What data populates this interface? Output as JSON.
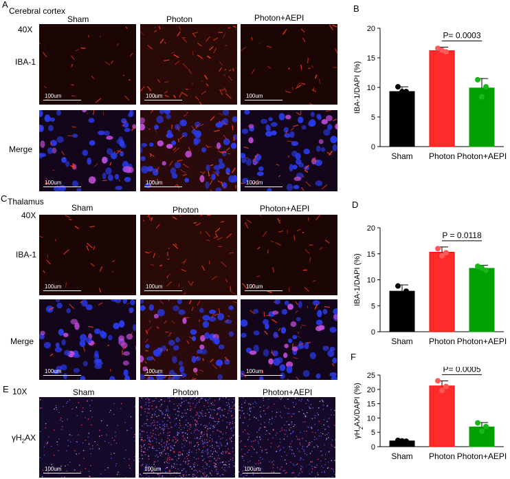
{
  "panels": {
    "A": {
      "letter": "A",
      "region": "Cerebral cortex",
      "magnification": "40X",
      "row_labels": [
        "IBA-1",
        "Merge"
      ],
      "col_labels": [
        "Sham",
        "Photon",
        "Photon+AEPI"
      ],
      "scale_text": "100um"
    },
    "C": {
      "letter": "C",
      "region": "Thalamus",
      "magnification": "40X",
      "row_labels": [
        "IBA-1",
        "Merge"
      ],
      "col_labels": [
        "Sham",
        "Photon",
        "Photon+AEPI"
      ],
      "scale_text": "100um"
    },
    "E": {
      "letter": "E",
      "magnification": "10X",
      "row_label": "γH2AX",
      "row_label_main": "γH",
      "row_label_sub": "2",
      "row_label_tail": "AX",
      "col_labels": [
        "Sham",
        "Photon",
        "Photon+AEPI"
      ],
      "scale_text": "100um"
    }
  },
  "chart_data": [
    {
      "panel": "B",
      "type": "bar",
      "categories": [
        "Sham",
        "Photon",
        "Photon+AEPI"
      ],
      "values": [
        9.3,
        16.2,
        9.9
      ],
      "errors": [
        0.8,
        0.6,
        1.6
      ],
      "points": [
        [
          10.1,
          9.3,
          9.3
        ],
        [
          16.6,
          16.0,
          16.3
        ],
        [
          11.3,
          10.1,
          8.4
        ]
      ],
      "colors": [
        "#000000",
        "#ff0000",
        "#00a000"
      ],
      "ylabel": "IBA-1/DAPI (%)",
      "ylim": [
        0,
        20
      ],
      "yticks": [
        0,
        5,
        10,
        15,
        20
      ],
      "annotation": "P= 0.0003"
    },
    {
      "panel": "D",
      "type": "bar",
      "categories": [
        "Sham",
        "Photon",
        "Photon+AEPI"
      ],
      "values": [
        7.8,
        15.3,
        12.2
      ],
      "errors": [
        1.2,
        1.0,
        0.6
      ],
      "points": [
        [
          8.8,
          7.8,
          7.2
        ],
        [
          16.0,
          15.2,
          14.6
        ],
        [
          12.6,
          11.8,
          12.3
        ]
      ],
      "colors": [
        "#000000",
        "#ff0000",
        "#00a000"
      ],
      "ylabel": "IBA-1/DAPI  (%)",
      "ylim": [
        0,
        20
      ],
      "yticks": [
        0,
        5,
        10,
        15,
        20
      ],
      "annotation": "P = 0.0118"
    },
    {
      "panel": "F",
      "type": "bar",
      "categories": [
        "Sham",
        "Photon",
        "Photon+AEPI"
      ],
      "values": [
        2.0,
        21.2,
        6.9
      ],
      "errors": [
        0.3,
        1.8,
        1.5
      ],
      "points": [
        [
          2.2,
          1.9,
          2.0
        ],
        [
          23.0,
          21.0,
          19.6
        ],
        [
          8.3,
          7.0,
          5.4
        ]
      ],
      "colors": [
        "#000000",
        "#ff0000",
        "#00a000"
      ],
      "ylabel": "γH2AX/DAPI  (%)",
      "ylabel_main": "γH",
      "ylabel_sub": "2",
      "ylabel_tail": "AX/DAPI  (%)",
      "ylim": [
        0,
        25
      ],
      "yticks": [
        0,
        5,
        10,
        15,
        20,
        25
      ],
      "annotation": "P= 0.0005"
    }
  ]
}
